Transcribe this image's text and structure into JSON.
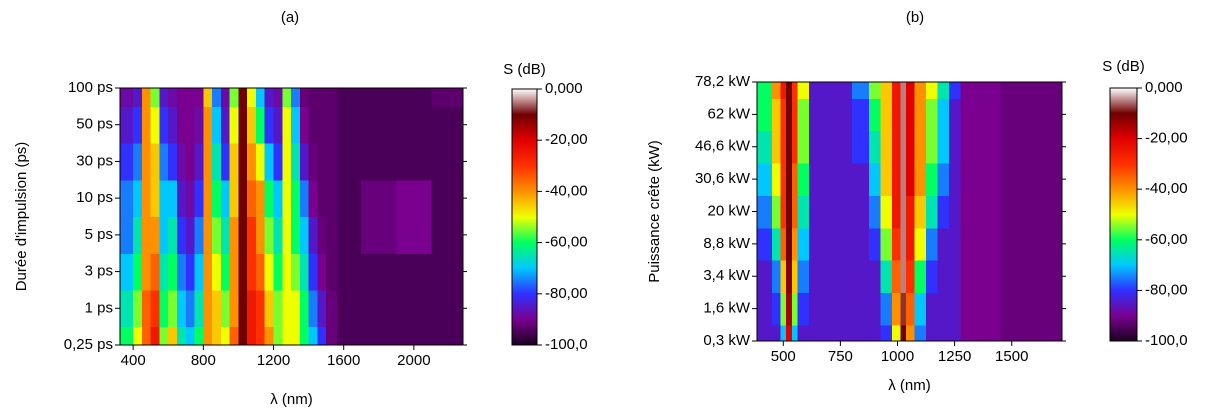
{
  "chart_data": [
    {
      "type": "heatmap",
      "title": "(a)",
      "xlabel": "λ (nm)",
      "ylabel": "Durée d'impulsion (ps)",
      "categories": [
        "0,25 ps",
        "1 ps",
        "3 ps",
        "5 ps",
        "10 ps",
        "30 ps",
        "50 ps",
        "100 ps"
      ],
      "x": [
        375,
        425,
        475,
        525,
        575,
        625,
        675,
        725,
        775,
        825,
        875,
        925,
        975,
        1025,
        1075,
        1125,
        1175,
        1225,
        1275,
        1325,
        1375,
        1425,
        1475,
        1525,
        1600,
        1800,
        2000,
        2200
      ],
      "z": [
        [
          -60,
          -50,
          -35,
          -25,
          -55,
          -45,
          -65,
          -70,
          -60,
          -40,
          -45,
          -50,
          -35,
          -10,
          -25,
          -30,
          -40,
          -55,
          -50,
          -50,
          -60,
          -70,
          -80,
          -92,
          -95,
          -95,
          -95,
          -95
        ],
        [
          -65,
          -55,
          -35,
          -30,
          -60,
          -55,
          -70,
          -75,
          -65,
          -40,
          -45,
          -55,
          -40,
          -10,
          -25,
          -30,
          -45,
          -55,
          -50,
          -50,
          -60,
          -75,
          -85,
          -92,
          -95,
          -95,
          -95,
          -95
        ],
        [
          -70,
          -60,
          -40,
          -35,
          -65,
          -60,
          -75,
          -80,
          -70,
          -40,
          -50,
          -60,
          -40,
          -10,
          -30,
          -35,
          -50,
          -60,
          -50,
          -55,
          -65,
          -80,
          -90,
          -93,
          -95,
          -95,
          -95,
          -95
        ],
        [
          -75,
          -65,
          -40,
          -40,
          -70,
          -65,
          -80,
          -85,
          -75,
          -40,
          -55,
          -65,
          -40,
          -10,
          -30,
          -40,
          -55,
          -65,
          -50,
          -60,
          -70,
          -85,
          -92,
          -93,
          -95,
          -92,
          -90,
          -95
        ],
        [
          -75,
          -70,
          -40,
          -45,
          -70,
          -70,
          -85,
          -88,
          -80,
          -40,
          -60,
          -70,
          -45,
          -10,
          -35,
          -40,
          -60,
          -70,
          -50,
          -60,
          -75,
          -90,
          -93,
          -93,
          -95,
          -92,
          -90,
          -95
        ],
        [
          -80,
          -75,
          -40,
          -45,
          -75,
          -80,
          -88,
          -90,
          -85,
          -40,
          -65,
          -80,
          -45,
          -10,
          -40,
          -50,
          -70,
          -80,
          -50,
          -65,
          -85,
          -92,
          -93,
          -93,
          -95,
          -95,
          -95,
          -95
        ],
        [
          -85,
          -80,
          -40,
          -50,
          -80,
          -85,
          -90,
          -90,
          -88,
          -40,
          -70,
          -85,
          -50,
          -10,
          -45,
          -60,
          -80,
          -85,
          -50,
          -70,
          -90,
          -93,
          -93,
          -93,
          -95,
          -95,
          -95,
          -95
        ],
        [
          -88,
          -85,
          -40,
          -55,
          -85,
          -88,
          -90,
          -90,
          -90,
          -45,
          -75,
          -88,
          -55,
          -10,
          -50,
          -70,
          -85,
          -88,
          -55,
          -75,
          -92,
          -93,
          -93,
          -93,
          -95,
          -95,
          -95,
          -93
        ]
      ],
      "xlim": [
        325,
        2280
      ],
      "xticks": [
        400,
        800,
        1200,
        1600,
        2000
      ],
      "colorbar_label": "S (dB)",
      "zlim": [
        -100,
        0
      ],
      "zticks": [
        {
          "value": 0,
          "label": "0,000"
        },
        {
          "value": -20,
          "label": "-20,00"
        },
        {
          "value": -40,
          "label": "-40,00"
        },
        {
          "value": -60,
          "label": "-60,00"
        },
        {
          "value": -80,
          "label": "-80,00"
        },
        {
          "value": -100,
          "label": "-100,0"
        }
      ],
      "colorscale": [
        "#1a0020",
        "#7a0090",
        "#3030ff",
        "#00c8ff",
        "#00ff60",
        "#f0ff00",
        "#ff9000",
        "#ff3000",
        "#e00000",
        "#700000",
        "#ffffff"
      ]
    },
    {
      "type": "heatmap",
      "title": "(b)",
      "xlabel": "λ (nm)",
      "ylabel": "Puissance crête (kW)",
      "categories": [
        "0,3 kW",
        "1,6 kW",
        "3,4 kW",
        "8,8 kW",
        "20 kW",
        "30,6 kW",
        "46,6 kW",
        "62 kW",
        "78,2 kW"
      ],
      "x": [
        425,
        475,
        500,
        525,
        550,
        575,
        650,
        750,
        850,
        900,
        950,
        1000,
        1025,
        1050,
        1100,
        1150,
        1200,
        1250,
        1300,
        1400,
        1500,
        1650
      ],
      "z": [
        [
          -85,
          -85,
          -70,
          -20,
          -70,
          -85,
          -85,
          -85,
          -85,
          -85,
          -80,
          -50,
          -10,
          -40,
          -75,
          -85,
          -85,
          -85,
          -90,
          -90,
          -92,
          -92
        ],
        [
          -85,
          -80,
          -55,
          -15,
          -55,
          -80,
          -85,
          -85,
          -85,
          -85,
          -75,
          -40,
          -8,
          -35,
          -70,
          -85,
          -85,
          -85,
          -90,
          -90,
          -92,
          -92
        ],
        [
          -85,
          -75,
          -45,
          -12,
          -45,
          -75,
          -85,
          -85,
          -85,
          -85,
          -65,
          -35,
          -5,
          -30,
          -60,
          -80,
          -85,
          -85,
          -90,
          -90,
          -92,
          -92
        ],
        [
          -80,
          -65,
          -35,
          -10,
          -40,
          -70,
          -85,
          -85,
          -85,
          -80,
          -55,
          -30,
          -5,
          -25,
          -50,
          -75,
          -85,
          -85,
          -90,
          -90,
          -92,
          -92
        ],
        [
          -75,
          -55,
          -30,
          -10,
          -35,
          -65,
          -85,
          -85,
          -85,
          -75,
          -50,
          -25,
          -5,
          -25,
          -45,
          -65,
          -80,
          -85,
          -90,
          -90,
          -92,
          -92
        ],
        [
          -70,
          -50,
          -30,
          -10,
          -35,
          -60,
          -85,
          -85,
          -85,
          -70,
          -45,
          -25,
          -5,
          -20,
          -40,
          -60,
          -75,
          -85,
          -90,
          -90,
          -92,
          -92
        ],
        [
          -65,
          -45,
          -30,
          -10,
          -30,
          -55,
          -85,
          -85,
          -80,
          -65,
          -45,
          -25,
          -5,
          -20,
          -40,
          -55,
          -70,
          -85,
          -90,
          -90,
          -92,
          -92
        ],
        [
          -60,
          -45,
          -30,
          -10,
          -30,
          -55,
          -85,
          -85,
          -80,
          -60,
          -45,
          -25,
          -5,
          -20,
          -40,
          -55,
          -70,
          -85,
          -90,
          -90,
          -92,
          -92
        ],
        [
          -60,
          -40,
          -25,
          -10,
          -30,
          -50,
          -85,
          -85,
          -75,
          -55,
          -45,
          -25,
          -5,
          -20,
          -40,
          -50,
          -65,
          -80,
          -90,
          -90,
          -92,
          -92
        ]
      ],
      "xlim": [
        385,
        1720
      ],
      "xticks": [
        500,
        750,
        1000,
        1250,
        1500
      ],
      "colorbar_label": "S (dB)",
      "zlim": [
        -100,
        0
      ],
      "zticks": [
        {
          "value": 0,
          "label": "0,000"
        },
        {
          "value": -20,
          "label": "-20,00"
        },
        {
          "value": -40,
          "label": "-40,00"
        },
        {
          "value": -60,
          "label": "-60,00"
        },
        {
          "value": -80,
          "label": "-80,00"
        },
        {
          "value": -100,
          "label": "-100,0"
        }
      ],
      "colorscale": [
        "#1a0020",
        "#7a0090",
        "#3030ff",
        "#00c8ff",
        "#00ff60",
        "#f0ff00",
        "#ff9000",
        "#ff3000",
        "#e00000",
        "#700000",
        "#ffffff"
      ]
    }
  ]
}
